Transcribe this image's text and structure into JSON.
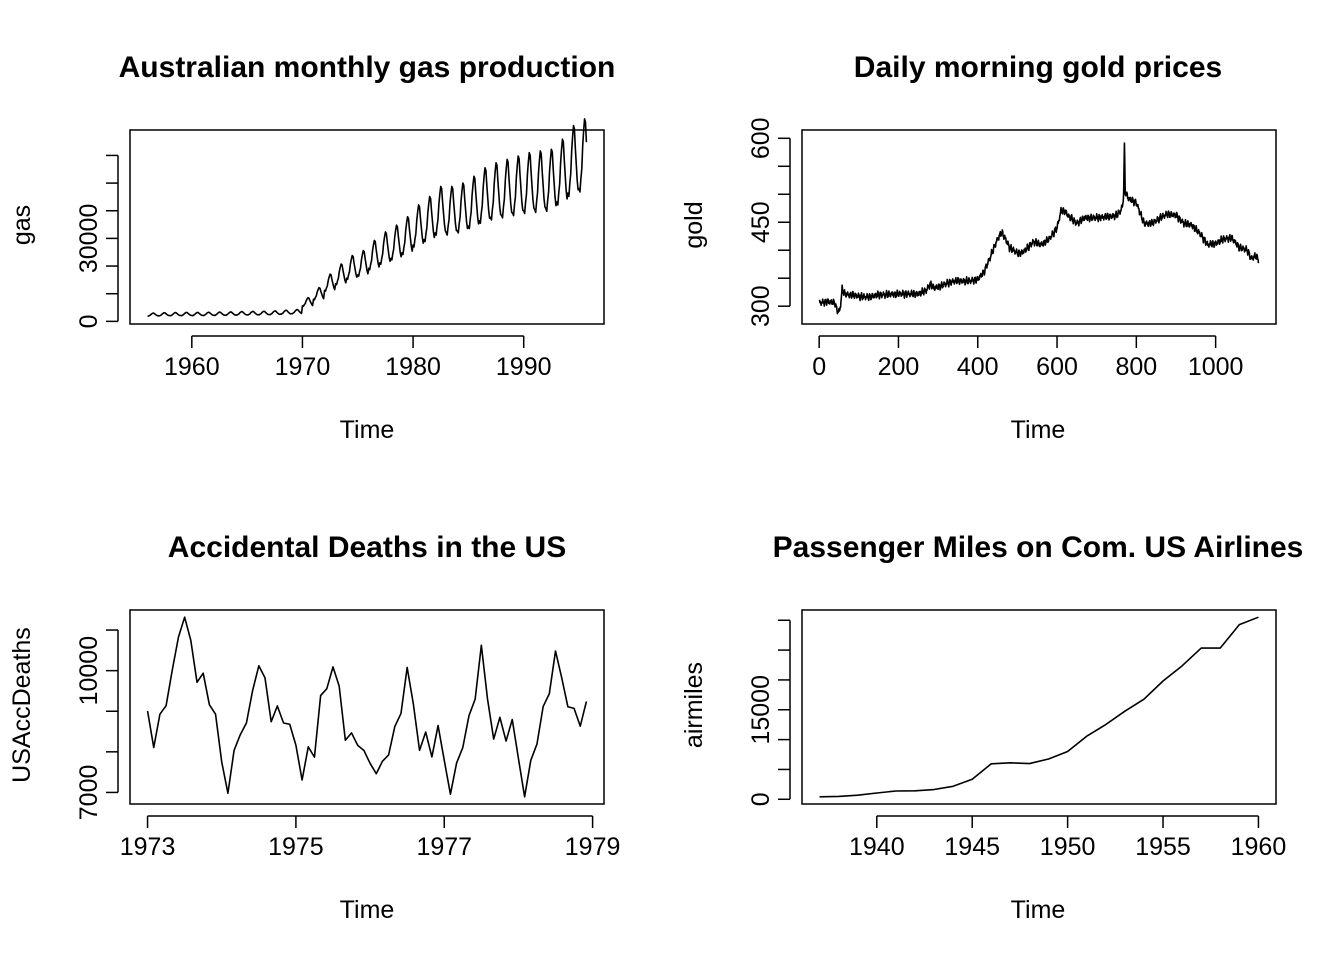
{
  "chart_data": [
    {
      "type": "line",
      "title": "Australian monthly gas production",
      "xlabel": "Time",
      "ylabel": "gas",
      "xlim": [
        1956,
        1995.67
      ],
      "ylim": [
        1646,
        66600
      ],
      "x_ticks": [
        1960,
        1970,
        1980,
        1990
      ],
      "y_ticks": [
        0,
        30000
      ],
      "y_tick_labels": [
        "0",
        "30000"
      ],
      "y_minor_ticks": [
        10000,
        20000,
        40000,
        50000,
        60000
      ],
      "frequency": 12,
      "start": 1956,
      "annual_means": [
        2450,
        2550,
        2600,
        2650,
        2650,
        2700,
        2750,
        2800,
        2900,
        2950,
        3000,
        3100,
        3300,
        3500,
        7000,
        10000,
        14000,
        17000,
        19500,
        21000,
        24000,
        26500,
        28500,
        31000,
        34500,
        37000,
        40000,
        40000,
        41000,
        43000,
        45500,
        47000,
        48000,
        49000,
        50000,
        50500,
        51000,
        54000,
        58000,
        60000
      ],
      "seasonal_pattern": [
        0.8,
        0.78,
        0.86,
        0.92,
        1.06,
        1.15,
        1.22,
        1.2,
        1.08,
        0.98,
        0.88,
        0.82
      ]
    },
    {
      "type": "line",
      "title": "Daily morning gold prices",
      "xlabel": "Time",
      "ylabel": "gold",
      "xlim": [
        1,
        1108
      ],
      "ylim": [
        281,
        602
      ],
      "x_ticks": [
        0,
        200,
        400,
        600,
        800,
        1000
      ],
      "y_ticks": [
        300,
        450,
        600
      ],
      "y_minor_ticks": [
        350,
        400,
        500,
        550
      ],
      "anchor_points": [
        [
          1,
          306
        ],
        [
          20,
          308
        ],
        [
          40,
          306
        ],
        [
          45,
          292
        ],
        [
          52,
          291
        ],
        [
          55,
          310
        ],
        [
          58,
          330
        ],
        [
          65,
          322
        ],
        [
          80,
          320
        ],
        [
          100,
          318
        ],
        [
          120,
          316
        ],
        [
          150,
          320
        ],
        [
          200,
          322
        ],
        [
          250,
          322
        ],
        [
          270,
          328
        ],
        [
          280,
          340
        ],
        [
          290,
          332
        ],
        [
          320,
          340
        ],
        [
          340,
          345
        ],
        [
          380,
          345
        ],
        [
          400,
          348
        ],
        [
          415,
          360
        ],
        [
          430,
          385
        ],
        [
          450,
          420
        ],
        [
          460,
          432
        ],
        [
          470,
          420
        ],
        [
          480,
          405
        ],
        [
          500,
          395
        ],
        [
          510,
          395
        ],
        [
          520,
          400
        ],
        [
          540,
          415
        ],
        [
          560,
          410
        ],
        [
          580,
          420
        ],
        [
          600,
          440
        ],
        [
          610,
          470
        ],
        [
          620,
          470
        ],
        [
          630,
          460
        ],
        [
          650,
          448
        ],
        [
          670,
          458
        ],
        [
          700,
          458
        ],
        [
          730,
          460
        ],
        [
          750,
          462
        ],
        [
          760,
          470
        ],
        [
          765,
          478
        ],
        [
          768,
          502
        ],
        [
          770,
          588
        ],
        [
          772,
          505
        ],
        [
          780,
          492
        ],
        [
          800,
          485
        ],
        [
          810,
          465
        ],
        [
          820,
          448
        ],
        [
          840,
          448
        ],
        [
          860,
          458
        ],
        [
          880,
          465
        ],
        [
          900,
          462
        ],
        [
          920,
          448
        ],
        [
          940,
          445
        ],
        [
          960,
          430
        ],
        [
          980,
          410
        ],
        [
          1000,
          412
        ],
        [
          1020,
          420
        ],
        [
          1040,
          422
        ],
        [
          1060,
          405
        ],
        [
          1080,
          400
        ],
        [
          1090,
          385
        ],
        [
          1100,
          390
        ],
        [
          1108,
          383
        ]
      ]
    },
    {
      "type": "line",
      "title": "Accidental Deaths in the US",
      "xlabel": "Time",
      "ylabel": "USAccDeaths",
      "xlim": [
        1973,
        1978.917
      ],
      "ylim": [
        6892,
        11317
      ],
      "x_ticks": [
        1973,
        1975,
        1977,
        1979
      ],
      "y_ticks": [
        7000,
        10000
      ],
      "y_minor_ticks": [
        8000,
        9000,
        11000
      ],
      "values": [
        9007,
        8106,
        8928,
        9137,
        10017,
        10826,
        11317,
        10744,
        9713,
        9938,
        9161,
        8927,
        7750,
        6981,
        8038,
        8422,
        8714,
        9512,
        10120,
        9823,
        8743,
        9129,
        8710,
        8680,
        8162,
        7306,
        8124,
        7870,
        9387,
        9556,
        10093,
        9620,
        8285,
        8466,
        8160,
        8034,
        7717,
        7461,
        7767,
        7925,
        8623,
        8945,
        10078,
        9179,
        8037,
        8488,
        7874,
        8647,
        7792,
        6957,
        7726,
        8106,
        8890,
        9299,
        10625,
        9302,
        8314,
        8850,
        8265,
        8796,
        7836,
        6892,
        7791,
        8192,
        9115,
        9434,
        10484,
        9827,
        9110,
        9070,
        8633,
        9240
      ]
    },
    {
      "type": "line",
      "title": "Passenger Miles on Com. US Airlines",
      "xlabel": "Time",
      "ylabel": "airmiles",
      "xlim": [
        1937,
        1960
      ],
      "ylim": [
        412,
        30514
      ],
      "x_ticks": [
        1940,
        1945,
        1950,
        1955,
        1960
      ],
      "y_ticks": [
        0,
        15000
      ],
      "y_minor_ticks": [
        5000,
        10000,
        20000,
        25000,
        30000
      ],
      "x": [
        1937,
        1938,
        1939,
        1940,
        1941,
        1942,
        1943,
        1944,
        1945,
        1946,
        1947,
        1948,
        1949,
        1950,
        1951,
        1952,
        1953,
        1954,
        1955,
        1956,
        1957,
        1958,
        1959,
        1960
      ],
      "values": [
        412,
        480,
        683,
        1052,
        1385,
        1418,
        1634,
        2178,
        3362,
        5948,
        6109,
        5981,
        6753,
        8003,
        10566,
        12528,
        14760,
        16769,
        19819,
        22362,
        25340,
        25343,
        29269,
        30514
      ]
    }
  ]
}
